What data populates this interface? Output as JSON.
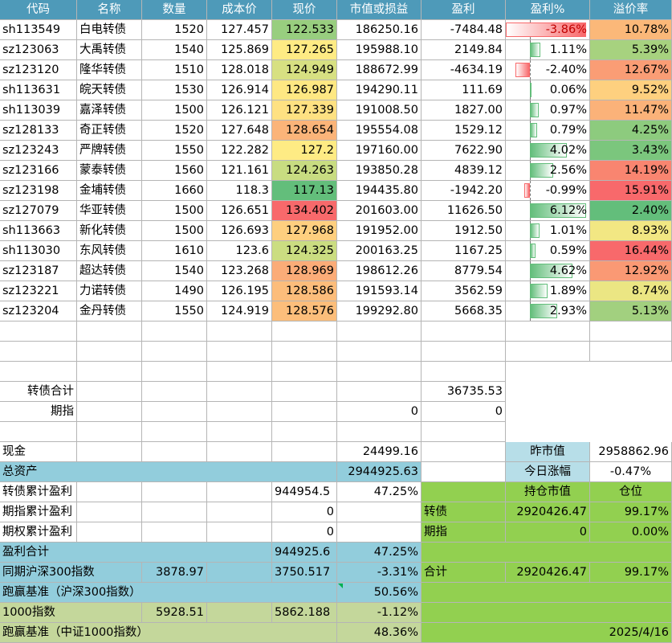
{
  "headers": [
    "代码",
    "名称",
    "数量",
    "成本价",
    "现价",
    "市值或损益",
    "盈利",
    "盈利%",
    "溢价率"
  ],
  "colors": {
    "header_bg": "#4e9ab9",
    "summary_blue": "#92cddc",
    "light_blue": "#b7dee8",
    "green": "#92d050",
    "olive": "#c4d79b",
    "bar_pos": "#63be7b",
    "bar_neg": "#f8696b"
  },
  "rows": [
    {
      "code": "sh113549",
      "name": "白电转债",
      "qty": "1520",
      "cost": "127.457",
      "price": "122.533",
      "mv": "186250.16",
      "profit": "-7484.48",
      "pct": "-3.86%",
      "pct_value": -3.86,
      "prem": "10.78%",
      "price_color": "#98ce7f",
      "prem_color": "#fbb879"
    },
    {
      "code": "sz123063",
      "name": "大禹转债",
      "qty": "1540",
      "cost": "125.869",
      "price": "127.265",
      "mv": "195988.10",
      "profit": "2149.84",
      "pct": "1.11%",
      "pct_value": 1.11,
      "prem": "5.39%",
      "price_color": "#feeb84",
      "prem_color": "#a7d27f"
    },
    {
      "code": "sz123120",
      "name": "隆华转债",
      "qty": "1510",
      "cost": "128.018",
      "price": "124.949",
      "mv": "188672.99",
      "profit": "-4634.19",
      "pct": "-2.40%",
      "pct_value": -2.4,
      "prem": "12.67%",
      "price_color": "#d7e082",
      "prem_color": "#fa9d75"
    },
    {
      "code": "sh113631",
      "name": "皖天转债",
      "qty": "1530",
      "cost": "126.914",
      "price": "126.987",
      "mv": "194290.11",
      "profit": "111.69",
      "pct": "0.06%",
      "pct_value": 0.06,
      "prem": "9.52%",
      "price_color": "#fee883",
      "prem_color": "#fed07f"
    },
    {
      "code": "sh113039",
      "name": "嘉泽转债",
      "qty": "1500",
      "cost": "126.121",
      "price": "127.339",
      "mv": "191008.50",
      "profit": "1827.00",
      "pct": "0.97%",
      "pct_value": 0.97,
      "prem": "11.47%",
      "price_color": "#fee182",
      "prem_color": "#fbb279"
    },
    {
      "code": "sz128133",
      "name": "奇正转债",
      "qty": "1520",
      "cost": "127.648",
      "price": "128.654",
      "mv": "195554.08",
      "profit": "1529.12",
      "pct": "0.79%",
      "pct_value": 0.79,
      "prem": "4.25%",
      "price_color": "#fbb479",
      "prem_color": "#8dcb7e"
    },
    {
      "code": "sz123243",
      "name": "严牌转债",
      "qty": "1550",
      "cost": "122.282",
      "price": "127.2",
      "mv": "197160.00",
      "profit": "7622.90",
      "pct": "4.02%",
      "pct_value": 4.02,
      "prem": "3.43%",
      "price_color": "#feeb84",
      "prem_color": "#7bc67d"
    },
    {
      "code": "sz123166",
      "name": "蒙泰转债",
      "qty": "1560",
      "cost": "121.161",
      "price": "124.263",
      "mv": "193850.28",
      "profit": "4839.12",
      "pct": "2.56%",
      "pct_value": 2.56,
      "prem": "14.19%",
      "price_color": "#c8dc81",
      "prem_color": "#f98570"
    },
    {
      "code": "sz123198",
      "name": "金埔转债",
      "qty": "1660",
      "cost": "118.3",
      "price": "117.13",
      "mv": "194435.80",
      "profit": "-1942.20",
      "pct": "-0.99%",
      "pct_value": -0.99,
      "prem": "15.91%",
      "price_color": "#63be7b",
      "prem_color": "#f8696b"
    },
    {
      "code": "sz127079",
      "name": "华亚转债",
      "qty": "1500",
      "cost": "126.651",
      "price": "134.402",
      "mv": "201603.00",
      "profit": "11626.50",
      "pct": "6.12%",
      "pct_value": 6.12,
      "prem": "2.40%",
      "price_color": "#f8696b",
      "prem_color": "#63be7b"
    },
    {
      "code": "sh113663",
      "name": "新化转债",
      "qty": "1500",
      "cost": "126.693",
      "price": "127.968",
      "mv": "191952.00",
      "profit": "1912.50",
      "pct": "1.01%",
      "pct_value": 1.01,
      "prem": "8.93%",
      "price_color": "#fecf7f",
      "prem_color": "#f2e783"
    },
    {
      "code": "sh113030",
      "name": "东风转债",
      "qty": "1610",
      "cost": "123.6",
      "price": "124.325",
      "mv": "200163.25",
      "profit": "1167.25",
      "pct": "0.59%",
      "pct_value": 0.59,
      "prem": "16.44%",
      "price_color": "#cbdd81",
      "prem_color": "#f8696b"
    },
    {
      "code": "sz123187",
      "name": "超达转债",
      "qty": "1540",
      "cost": "123.268",
      "price": "128.969",
      "mv": "198612.26",
      "profit": "8779.54",
      "pct": "4.62%",
      "pct_value": 4.62,
      "prem": "12.92%",
      "price_color": "#fbac78",
      "prem_color": "#fa9974"
    },
    {
      "code": "sz123221",
      "name": "力诺转债",
      "qty": "1490",
      "cost": "126.195",
      "price": "128.586",
      "mv": "191593.14",
      "profit": "3562.59",
      "pct": "1.89%",
      "pct_value": 1.89,
      "prem": "8.74%",
      "price_color": "#fcbd7b",
      "prem_color": "#ebe683"
    },
    {
      "code": "sz123204",
      "name": "金丹转债",
      "qty": "1550",
      "cost": "124.919",
      "price": "128.576",
      "mv": "199292.80",
      "profit": "5668.35",
      "pct": "2.93%",
      "pct_value": 2.93,
      "prem": "5.13%",
      "price_color": "#fcbe7b",
      "prem_color": "#a2d07f"
    }
  ],
  "subtotals": {
    "bond_total_label": "转债合计",
    "bond_total_value": "36735.53",
    "futures_label": "期指",
    "futures_mv": "0",
    "futures_profit": "0"
  },
  "summary": {
    "cash_label": "现金",
    "cash_value": "24499.16",
    "total_assets_label": "总资产",
    "total_assets_value": "2944925.63",
    "prev_mv_label": "昨市值",
    "prev_mv_value": "2958862.96",
    "today_change_label": "今日涨幅",
    "today_change_value": "-0.47%",
    "bond_cum_label": "转债累计盈利",
    "bond_cum_value": "944954.5",
    "bond_cum_pct": "47.25%",
    "fut_cum_label": "期指累计盈利",
    "fut_cum_value": "0",
    "opt_cum_label": "期权累计盈利",
    "opt_cum_value": "0",
    "profit_total_label": "盈利合计",
    "profit_total_value": "944925.6",
    "profit_total_pct": "47.25%",
    "hs300_label": "同期沪深300指数",
    "hs300_start": "3878.97",
    "hs300_now": "3750.517",
    "hs300_pct": "-3.31%",
    "beat_hs300_label": "跑赢基准（沪深300指数）",
    "beat_hs300_value": "50.56%",
    "csi1000_label": "1000指数",
    "csi1000_start": "5928.51",
    "csi1000_now": "5862.188",
    "csi1000_pct": "-1.12%",
    "beat_csi1000_label": "跑赢基准（中证1000指数）",
    "beat_csi1000_value": "48.36%",
    "date": "2025/4/16"
  },
  "positions": {
    "hold_mv_label": "持仓市值",
    "ratio_label": "仓位",
    "bond_label": "转债",
    "bond_mv": "2920426.47",
    "bond_ratio": "99.17%",
    "fut_label": "期指",
    "fut_mv": "0",
    "fut_ratio": "0.00%",
    "total_label": "合计",
    "total_mv": "2920426.47",
    "total_ratio": "99.17%"
  }
}
